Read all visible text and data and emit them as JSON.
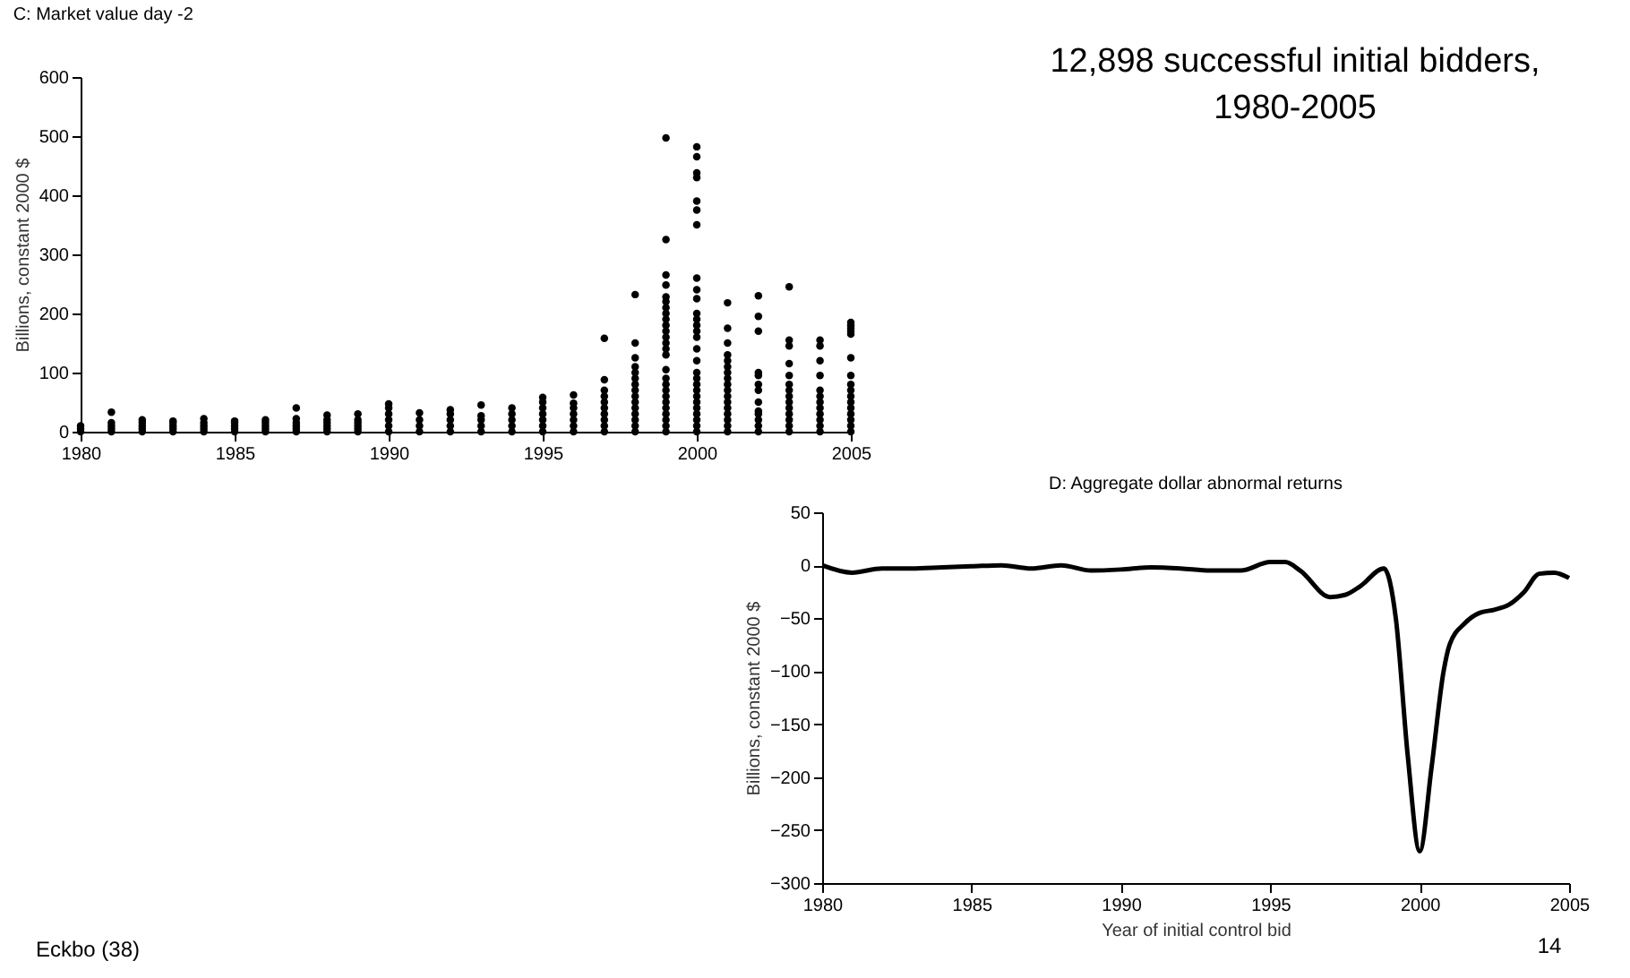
{
  "chart_data": [
    {
      "type": "scatter",
      "title": "C: Market value day -2",
      "ylabel": "Billions, constant 2000 $",
      "xlim": [
        1980,
        2005
      ],
      "xticks": [
        1980,
        1985,
        1990,
        1995,
        2000,
        2005
      ],
      "ylim": [
        0,
        600
      ],
      "yticks": [
        0,
        100,
        200,
        300,
        400,
        500,
        600
      ],
      "marker": "circle",
      "annotations": [
        "12,898 successful initial bidders, 1980-2005",
        "Eckbo (38)"
      ],
      "series": [
        {
          "color": "#000000",
          "x": [
            1980,
            1980,
            1980,
            1981,
            1981,
            1981,
            1981,
            1981,
            1982,
            1982,
            1982,
            1982,
            1982,
            1983,
            1983,
            1983,
            1983,
            1983,
            1984,
            1984,
            1984,
            1984,
            1984,
            1985,
            1985,
            1985,
            1985,
            1985,
            1986,
            1986,
            1986,
            1986,
            1986,
            1987,
            1987,
            1987,
            1987,
            1987,
            1987,
            1988,
            1988,
            1988,
            1988,
            1988,
            1988,
            1989,
            1989,
            1989,
            1989,
            1989,
            1989,
            1990,
            1990,
            1990,
            1990,
            1990,
            1990,
            1991,
            1991,
            1991,
            1991,
            1992,
            1992,
            1992,
            1992,
            1992,
            1993,
            1993,
            1993,
            1993,
            1993,
            1994,
            1994,
            1994,
            1994,
            1994,
            1995,
            1995,
            1995,
            1995,
            1995,
            1995,
            1995,
            1996,
            1996,
            1996,
            1996,
            1996,
            1996,
            1996,
            1997,
            1997,
            1997,
            1997,
            1997,
            1997,
            1997,
            1997,
            1997,
            1997,
            1998,
            1998,
            1998,
            1998,
            1998,
            1998,
            1998,
            1998,
            1998,
            1998,
            1998,
            1998,
            1998,
            1998,
            1998,
            1999,
            1999,
            1999,
            1999,
            1999,
            1999,
            1999,
            1999,
            1999,
            1999,
            1999,
            1999,
            1999,
            1999,
            1999,
            1999,
            1999,
            1999,
            1999,
            1999,
            1999,
            1999,
            1999,
            1999,
            1999,
            1999,
            2000,
            2000,
            2000,
            2000,
            2000,
            2000,
            2000,
            2000,
            2000,
            2000,
            2000,
            2000,
            2000,
            2000,
            2000,
            2000,
            2000,
            2000,
            2000,
            2000,
            2000,
            2000,
            2000,
            2000,
            2000,
            2000,
            2000,
            2000,
            2001,
            2001,
            2001,
            2001,
            2001,
            2001,
            2001,
            2001,
            2001,
            2001,
            2001,
            2001,
            2001,
            2001,
            2001,
            2001,
            2001,
            2002,
            2002,
            2002,
            2002,
            2002,
            2002,
            2002,
            2002,
            2002,
            2002,
            2002,
            2002,
            2002,
            2003,
            2003,
            2003,
            2003,
            2003,
            2003,
            2003,
            2003,
            2003,
            2003,
            2003,
            2003,
            2003,
            2003,
            2004,
            2004,
            2004,
            2004,
            2004,
            2004,
            2004,
            2004,
            2004,
            2004,
            2004,
            2004,
            2005,
            2005,
            2005,
            2005,
            2005,
            2005,
            2005,
            2005,
            2005,
            2005,
            2005,
            2005,
            2005,
            2005,
            2005,
            2005
          ],
          "values": [
            0,
            5,
            10,
            0,
            5,
            10,
            15,
            33,
            0,
            5,
            10,
            15,
            20,
            0,
            5,
            10,
            15,
            18,
            0,
            5,
            10,
            15,
            22,
            0,
            5,
            10,
            15,
            18,
            0,
            5,
            10,
            15,
            20,
            0,
            5,
            10,
            15,
            22,
            40,
            0,
            5,
            10,
            15,
            20,
            28,
            0,
            5,
            10,
            15,
            20,
            30,
            0,
            10,
            20,
            30,
            40,
            47,
            0,
            10,
            20,
            32,
            0,
            10,
            20,
            30,
            37,
            0,
            10,
            20,
            27,
            45,
            0,
            10,
            20,
            30,
            40,
            0,
            10,
            20,
            30,
            40,
            50,
            58,
            0,
            10,
            20,
            30,
            40,
            48,
            62,
            0,
            10,
            20,
            30,
            40,
            50,
            60,
            70,
            88,
            158,
            0,
            10,
            20,
            30,
            40,
            50,
            60,
            70,
            80,
            90,
            100,
            110,
            125,
            150,
            232,
            0,
            10,
            20,
            30,
            40,
            50,
            60,
            70,
            80,
            90,
            105,
            130,
            140,
            150,
            160,
            170,
            180,
            190,
            200,
            210,
            220,
            228,
            248,
            265,
            325,
            497,
            0,
            10,
            20,
            30,
            40,
            50,
            60,
            70,
            80,
            90,
            100,
            120,
            140,
            160,
            170,
            180,
            190,
            200,
            225,
            240,
            260,
            350,
            375,
            390,
            430,
            438,
            465,
            482,
            0,
            10,
            20,
            30,
            40,
            50,
            60,
            70,
            80,
            90,
            100,
            110,
            120,
            130,
            150,
            175,
            218,
            0,
            10,
            20,
            30,
            35,
            50,
            70,
            80,
            95,
            100,
            170,
            195,
            230,
            0,
            10,
            20,
            30,
            40,
            50,
            60,
            70,
            80,
            95,
            115,
            145,
            155,
            245,
            0,
            10,
            20,
            30,
            40,
            50,
            60,
            70,
            95,
            120,
            145,
            155,
            0,
            10,
            20,
            30,
            40,
            50,
            60,
            70,
            80,
            95,
            125,
            165,
            170,
            175,
            180,
            185
          ]
        }
      ]
    },
    {
      "type": "line",
      "title": "D: Aggregate dollar abnormal returns",
      "xlabel": "Year of initial control bid",
      "ylabel": "Billions, constant 2000 $",
      "xlim": [
        1980,
        2005
      ],
      "xticks": [
        1980,
        1985,
        1990,
        1995,
        2000,
        2005
      ],
      "ylim": [
        -300,
        50
      ],
      "yticks": [
        -300,
        -250,
        -200,
        -150,
        -100,
        -50,
        0,
        50
      ],
      "line_style": "solid",
      "annotations": [
        "14"
      ],
      "series": [
        {
          "color": "#000000",
          "x": [
            1980,
            1981,
            1982,
            1983,
            1984,
            1985,
            1986,
            1987,
            1988,
            1989,
            1990,
            1991,
            1992,
            1993,
            1994,
            1995,
            1995.5,
            1996,
            1997,
            1997.5,
            1998,
            1998.8,
            1999.2,
            1999.6,
            2000,
            2000.4,
            2000.8,
            2001,
            2001.5,
            2002,
            2002.5,
            2003,
            2003.5,
            2004,
            2004.5,
            2005
          ],
          "values": [
            0,
            -7,
            -3,
            -3,
            -2,
            -1,
            0,
            -3,
            0,
            -5,
            -4,
            -2,
            -3,
            -5,
            -5,
            3,
            3,
            -5,
            -30,
            -28,
            -20,
            -3,
            -50,
            -180,
            -270,
            -190,
            -100,
            -75,
            -55,
            -45,
            -42,
            -37,
            -25,
            -8,
            -7,
            -12
          ]
        }
      ]
    }
  ]
}
